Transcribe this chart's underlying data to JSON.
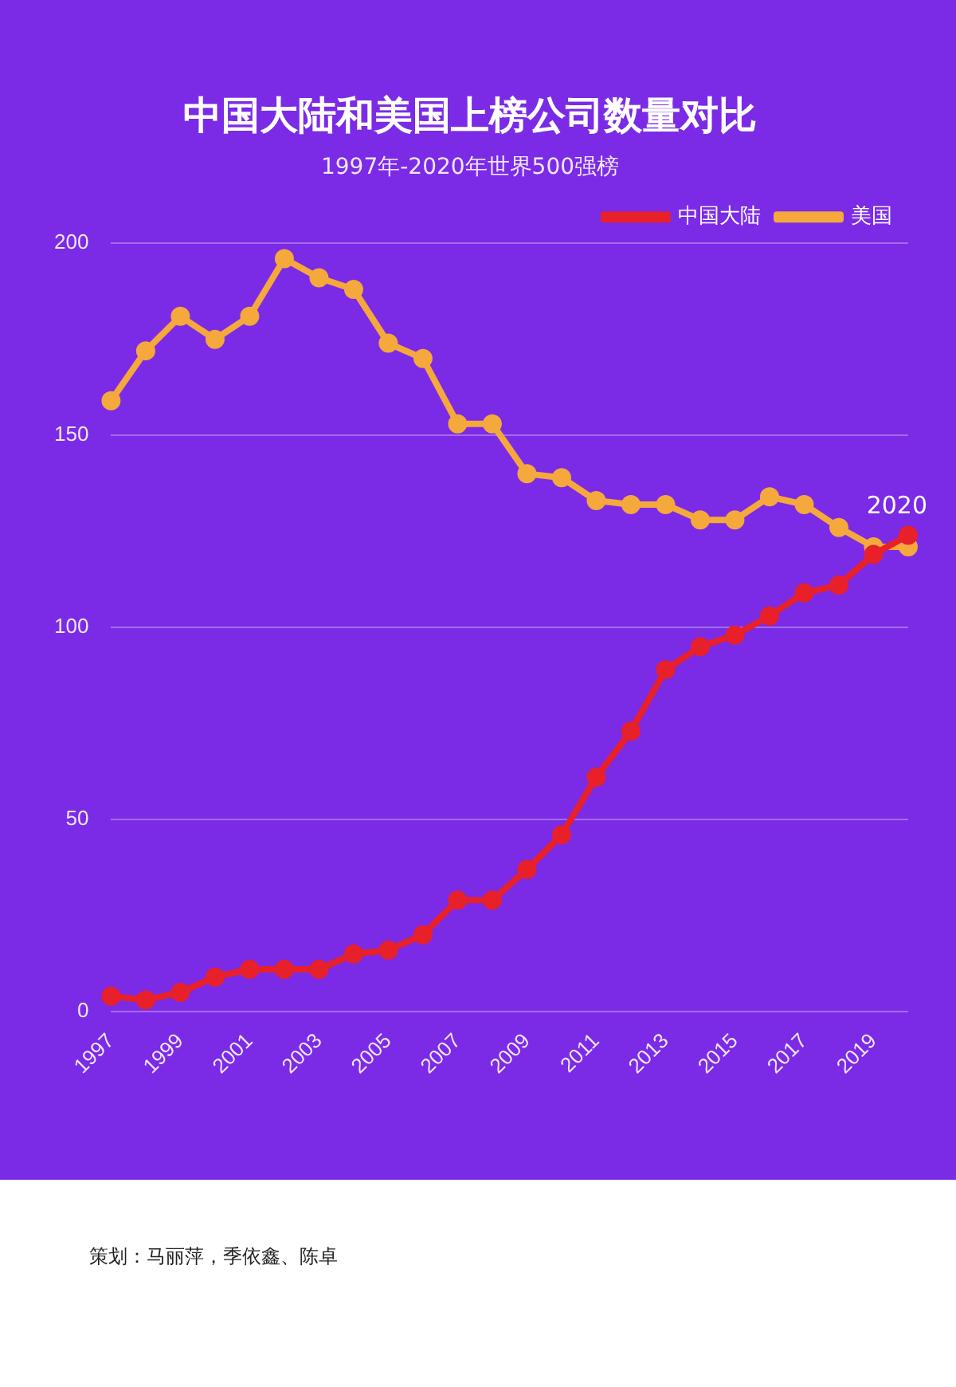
{
  "chart_data": {
    "type": "line",
    "title": "中国大陆和美国上榜公司数量对比",
    "subtitle": "1997年-2020年世界500强榜",
    "categories": [
      "1997",
      null,
      "1999",
      null,
      "2001",
      null,
      "2003",
      null,
      "2005",
      null,
      "2007",
      null,
      "2009",
      null,
      "2011",
      null,
      "2013",
      null,
      "2015",
      null,
      "2017",
      null,
      "2019",
      null
    ],
    "series": [
      {
        "name": "中国大陆",
        "color": "#e8202a",
        "values": [
          4,
          3,
          5,
          9,
          11,
          11,
          11,
          15,
          16,
          20,
          29,
          29,
          37,
          46,
          61,
          73,
          89,
          95,
          98,
          103,
          109,
          111,
          119,
          124
        ]
      },
      {
        "name": "美国",
        "color": "#f5a83c",
        "values": [
          159,
          172,
          181,
          175,
          181,
          196,
          191,
          188,
          174,
          170,
          153,
          153,
          140,
          139,
          133,
          132,
          132,
          128,
          128,
          134,
          132,
          126,
          121,
          121
        ]
      }
    ],
    "ylim": [
      0,
      200
    ],
    "yticks": [
      0,
      50,
      100,
      150,
      200
    ],
    "grid": "y",
    "legend": "top right",
    "marker": "circle",
    "line_style": "solid",
    "annotations": [
      "2020",
      "策划：马丽萍，季依鑫、陈卓"
    ]
  }
}
